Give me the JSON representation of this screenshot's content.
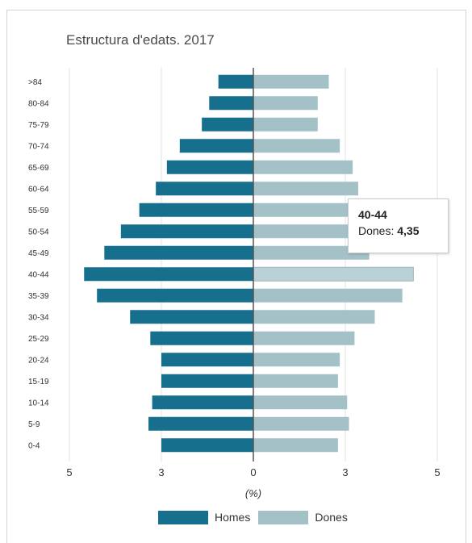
{
  "chart_data": {
    "type": "bar",
    "orientation": "horizontal",
    "title": "Estructura d'edats. 2017",
    "xlabel": "(%)",
    "ylabel": "",
    "categories": [
      ">84",
      "80-84",
      "75-79",
      "70-74",
      "65-69",
      "60-64",
      "55-59",
      "50-54",
      "45-49",
      "40-44",
      "35-39",
      "30-34",
      "25-29",
      "20-24",
      "15-19",
      "10-14",
      "5-9",
      "0-4"
    ],
    "xlim": [
      -5.5,
      5.5
    ],
    "x_ticks": [
      -5,
      -2.5,
      0,
      2.5,
      5
    ],
    "x_tick_labels": [
      "5",
      "3",
      "0",
      "3",
      "5"
    ],
    "grid": true,
    "legend_position": "bottom",
    "series": [
      {
        "name": "Homes",
        "color": "#166f8d",
        "values": [
          -0.95,
          -1.2,
          -1.4,
          -2.0,
          -2.35,
          -2.65,
          -3.1,
          -3.6,
          -4.05,
          -4.6,
          -4.25,
          -3.35,
          -2.8,
          -2.5,
          -2.5,
          -2.75,
          -2.85,
          -2.5
        ]
      },
      {
        "name": "Dones",
        "color": "#a4c1c8",
        "values": [
          2.05,
          1.75,
          1.75,
          2.35,
          2.7,
          2.85,
          3.1,
          3.1,
          3.15,
          4.35,
          4.05,
          3.3,
          2.75,
          2.35,
          2.3,
          2.55,
          2.6,
          2.3
        ]
      }
    ],
    "tooltip": {
      "category": "40-44",
      "series": "Dones",
      "value": "4,35"
    }
  }
}
